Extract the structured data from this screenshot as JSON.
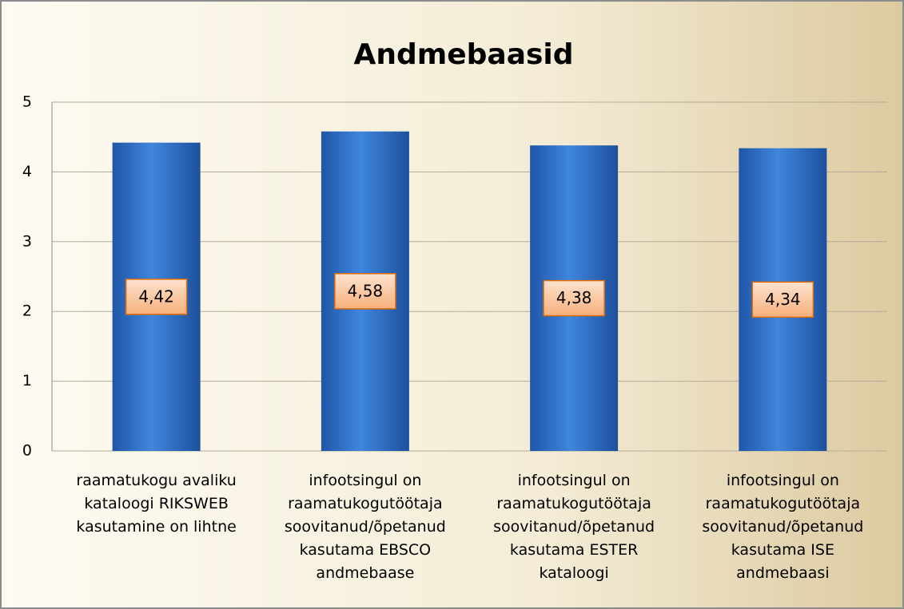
{
  "chart_data": {
    "type": "bar",
    "title": "Andmebaasid",
    "categories": [
      "raamatukogu avaliku kataloogi RIKSWEB kasutamine on lihtne",
      "infootsingul on raamatukogutöötaja soovitanud/õpetanud kasutama EBSCO andmebaase",
      "infootsingul on raamatukogutöötaja soovitanud/õpetanud kasutama ESTER kataloogi",
      "infootsingul on raamatukogutöötaja soovitanud/õpetanud kasutama ISE andmebaasi"
    ],
    "values": [
      4.42,
      4.58,
      4.38,
      4.34
    ],
    "value_labels": [
      "4,42",
      "4,58",
      "4,38",
      "4,34"
    ],
    "color": "#2f6fc4",
    "ylim": [
      0,
      5
    ],
    "yticks": [
      0,
      1,
      2,
      3,
      4,
      5
    ],
    "grid": true
  }
}
